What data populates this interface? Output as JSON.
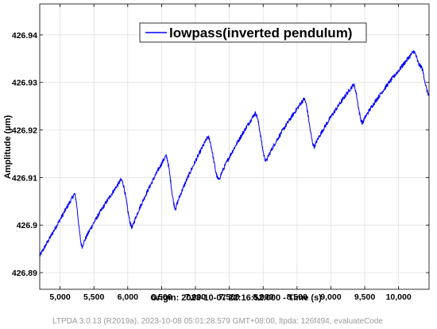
{
  "chart_data": {
    "type": "line",
    "xlabel": "Origin: 2023-10-07 22:16:52.000 - Time  (s)",
    "ylabel": "Amplitude  (µm)",
    "xlim": [
      4700,
      10450
    ],
    "ylim": [
      426.8865,
      426.9465
    ],
    "x_ticks": [
      5000,
      5500,
      6000,
      6500,
      7000,
      7500,
      8000,
      8500,
      9000,
      9500,
      10000
    ],
    "x_tick_labels": [
      "5,000",
      "5,500",
      "6,000",
      "6,500",
      "7,000",
      "7,500",
      "8,000",
      "8,500",
      "9,000",
      "9,500",
      "10,000"
    ],
    "y_ticks": [
      426.89,
      426.9,
      426.91,
      426.92,
      426.93,
      426.94
    ],
    "y_tick_labels": [
      "426.89",
      "426.9",
      "426.91",
      "426.92",
      "426.93",
      "426.94"
    ],
    "grid": true,
    "legend_placement": "top-right",
    "series": [
      {
        "name": "lowpass(inverted pendulum)",
        "color": "#0000ff",
        "x": [
          4700,
          5210,
          5330,
          5900,
          6070,
          6560,
          6710,
          7180,
          7350,
          7880,
          8050,
          8600,
          8760,
          9330,
          9470,
          10000,
          10220,
          10320,
          10450
        ],
        "y": [
          426.8935,
          426.9065,
          426.8955,
          426.9095,
          426.8995,
          426.9145,
          426.9035,
          426.9185,
          426.9095,
          426.9235,
          426.9135,
          426.9265,
          426.9165,
          426.9295,
          426.9215,
          426.9325,
          426.9365,
          426.9335,
          426.9275
        ]
      }
    ]
  },
  "footer": "LTPDA 3.0.13 (R2019a), 2023-10-08 05:01:28.579 GMT+08:00, ltpda: 126f494, evaluateCode"
}
